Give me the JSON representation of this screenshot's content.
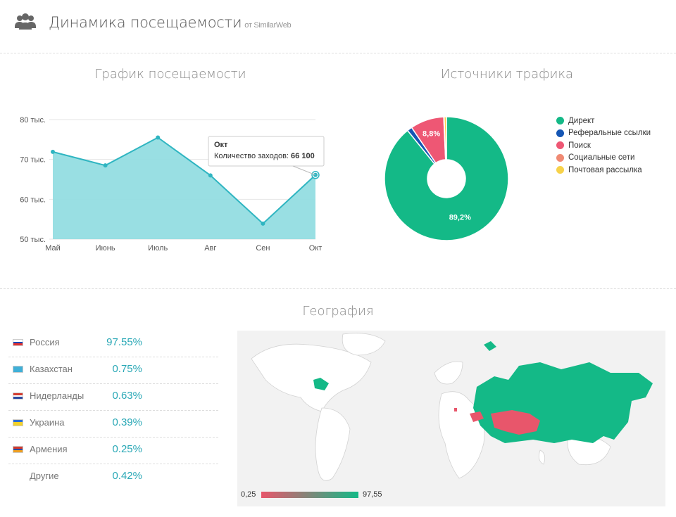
{
  "header": {
    "title": "Динамика посещаемости",
    "subtitle": "от SimilarWeb",
    "icon": "users-icon"
  },
  "traffic": {
    "title": "График посещаемости",
    "tooltip": {
      "month": "Окт",
      "label": "Количество заходов:",
      "value": "66 100"
    },
    "chart_data": {
      "type": "area",
      "categories": [
        "Май",
        "Июнь",
        "Июль",
        "Авг",
        "Сен",
        "Окт"
      ],
      "values": [
        71900,
        68500,
        75500,
        66000,
        53900,
        66100
      ],
      "ylim": [
        50000,
        80000
      ],
      "yticks": [
        {
          "value": 50000,
          "label": "50 тыс."
        },
        {
          "value": 60000,
          "label": "60 тыс."
        },
        {
          "value": 70000,
          "label": "70 тыс."
        },
        {
          "value": 80000,
          "label": "80 тыс."
        }
      ],
      "color": "#2fb5c1",
      "fill": "#93dde2",
      "grid": true
    }
  },
  "sources": {
    "title": "Источники трафика",
    "chart_data": {
      "type": "pie",
      "slices": [
        {
          "name": "Директ",
          "value": 89.2,
          "label": "89,2%",
          "color": "#14b987"
        },
        {
          "name": "Реферальные ссылки",
          "value": 1.3,
          "label": "",
          "color": "#1556b4"
        },
        {
          "name": "Поиск",
          "value": 8.8,
          "label": "8,8%",
          "color": "#ee5774"
        },
        {
          "name": "Социальные сети",
          "value": 0.1,
          "label": "",
          "color": "#f08a73"
        },
        {
          "name": "Почтовая рассылка",
          "value": 0.6,
          "label": "",
          "color": "#f7d24a"
        }
      ],
      "legend_placement": "right"
    }
  },
  "geo": {
    "title": "География",
    "rows": [
      {
        "name": "Россия",
        "value": "97.55%",
        "flag": [
          "#ffffff",
          "#1d49b5",
          "#e03030"
        ]
      },
      {
        "name": "Казахстан",
        "value": "0.75%",
        "flag": [
          "#3fb0d8",
          "#3fb0d8",
          "#3fb0d8"
        ]
      },
      {
        "name": "Нидерланды",
        "value": "0.63%",
        "flag": [
          "#d33a2e",
          "#ffffff",
          "#2a4aa0"
        ]
      },
      {
        "name": "Украина",
        "value": "0.39%",
        "flag": [
          "#2d6fd6",
          "#f3d22a",
          "#f3d22a"
        ]
      },
      {
        "name": "Армения",
        "value": "0.25%",
        "flag": [
          "#d33a2e",
          "#2a4aa0",
          "#f0a020"
        ]
      },
      {
        "name": "Другие",
        "value": "0.42%",
        "flag": null
      }
    ],
    "scale_min": "0,25",
    "scale_max": "97,55",
    "color_low": "#e8566b",
    "color_high": "#14b987"
  }
}
